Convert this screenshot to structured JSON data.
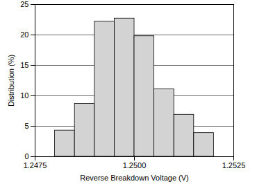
{
  "chart_data": {
    "type": "histogram",
    "x_label": "Reverse Breakdown Voltage (V)",
    "y_label": "Distribution (%)",
    "bins": [
      1.248,
      1.2485,
      1.249,
      1.2495,
      1.25,
      1.2505,
      1.251,
      1.2515,
      1.252
    ],
    "values": [
      4.3,
      8.7,
      22.2,
      22.7,
      19.8,
      11.1,
      6.9,
      3.9
    ],
    "color": "#d3d3d3",
    "xlim": [
      1.2475,
      1.2525
    ],
    "xticks": [
      1.2475,
      {
        "value": 1.25,
        "label": "1.2500"
      },
      1.2525
    ],
    "ylim": [
      0,
      25
    ],
    "yticks": [
      0,
      5,
      10,
      15,
      20,
      25
    ],
    "grid": true
  }
}
